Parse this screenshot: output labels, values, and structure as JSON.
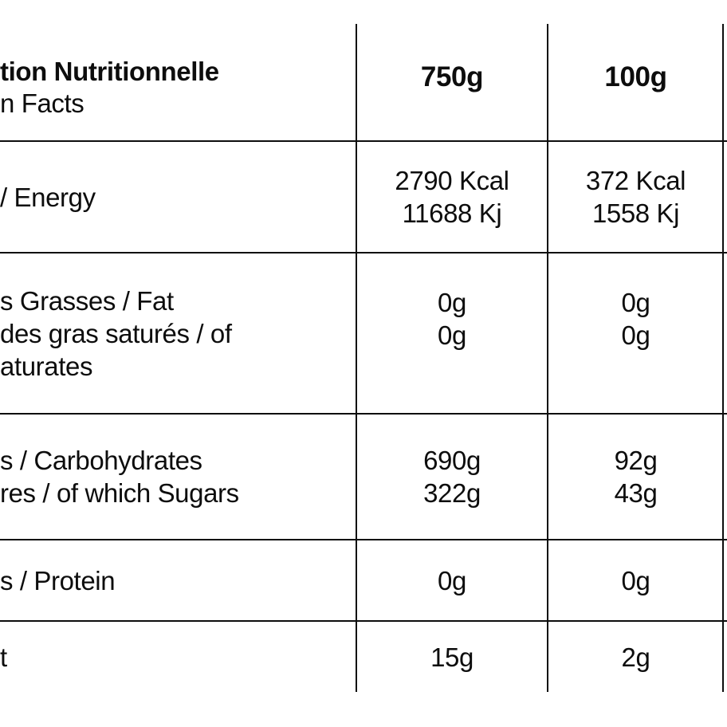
{
  "header": {
    "title_line1": "tion Nutritionnelle",
    "title_line2": "n Facts",
    "col1": "750g",
    "col2": "100g"
  },
  "rows": {
    "energy": {
      "labels": [
        "/ Energy"
      ],
      "col1": [
        "2790 Kcal",
        "11688 Kj"
      ],
      "col2": [
        "372 Kcal",
        "1558 Kj"
      ]
    },
    "fat": {
      "labels": [
        "s Grasses / Fat",
        "des gras saturés / of",
        "aturates"
      ],
      "col1": [
        "0g",
        "0g"
      ],
      "col2": [
        "0g",
        "0g"
      ]
    },
    "carbs": {
      "labels": [
        "s / Carbohydrates",
        "res / of which Sugars"
      ],
      "col1": [
        "690g",
        "322g"
      ],
      "col2": [
        "92g",
        "43g"
      ]
    },
    "protein": {
      "labels": [
        "s / Protein"
      ],
      "col1": [
        "0g"
      ],
      "col2": [
        "0g"
      ]
    },
    "salt": {
      "labels": [
        "t"
      ],
      "col1": [
        "15g"
      ],
      "col2": [
        "2g"
      ]
    }
  },
  "colors": {
    "text": "#0d0d0d",
    "line": "#0d0d0d",
    "background": "#ffffff"
  }
}
